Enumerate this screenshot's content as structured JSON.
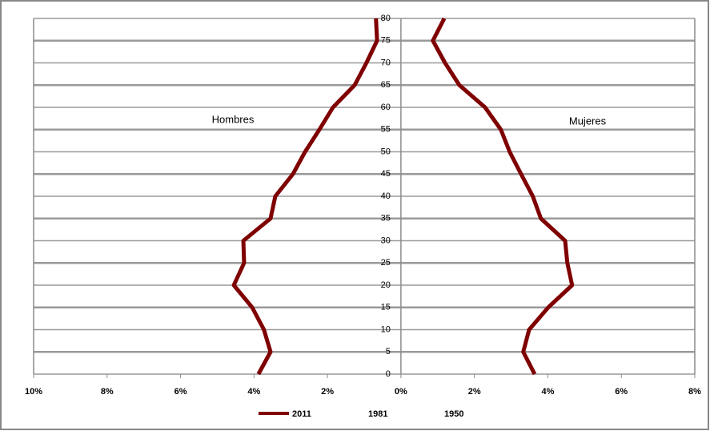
{
  "chart_data": {
    "type": "line",
    "annotations": [
      "Hombres",
      "Mujeres"
    ],
    "y": [
      0,
      5,
      10,
      15,
      20,
      25,
      30,
      35,
      40,
      45,
      50,
      55,
      60,
      65,
      70,
      75,
      80
    ],
    "ylim": [
      0,
      80
    ],
    "yticks": [
      0,
      5,
      10,
      15,
      20,
      25,
      30,
      35,
      40,
      45,
      50,
      55,
      60,
      65,
      70,
      75,
      80
    ],
    "xlim": [
      -10,
      8
    ],
    "xticks": [
      {
        "value": -10,
        "label": "10%"
      },
      {
        "value": -8,
        "label": "8%"
      },
      {
        "value": -6,
        "label": "6%"
      },
      {
        "value": -4,
        "label": "4%"
      },
      {
        "value": -2,
        "label": "2%"
      },
      {
        "value": 0,
        "label": "0%"
      },
      {
        "value": 2,
        "label": "2%"
      },
      {
        "value": 4,
        "label": "4%"
      },
      {
        "value": 6,
        "label": "6%"
      },
      {
        "value": 8,
        "label": "8%"
      }
    ],
    "grid": true,
    "series": [
      {
        "name": "2011",
        "color": "#7f0000",
        "hombres": [
          -3.88,
          -3.55,
          -3.73,
          -4.05,
          -4.55,
          -4.27,
          -4.29,
          -3.55,
          -3.42,
          -2.94,
          -2.61,
          -2.22,
          -1.85,
          -1.26,
          -0.94,
          -0.65,
          -0.68
        ],
        "mujeres": [
          3.64,
          3.33,
          3.49,
          4.01,
          4.66,
          4.53,
          4.47,
          3.81,
          3.59,
          3.27,
          2.96,
          2.72,
          2.29,
          1.59,
          1.2,
          0.87,
          1.18
        ]
      },
      {
        "name": "1981"
      },
      {
        "name": "1950"
      }
    ]
  }
}
